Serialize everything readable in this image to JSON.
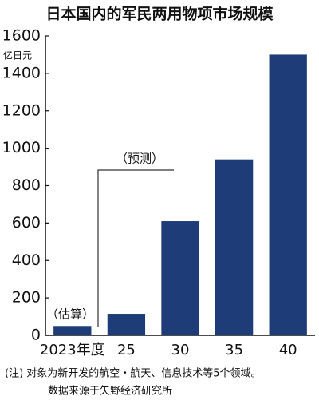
{
  "chart_data": {
    "type": "bar",
    "title": "日本国内的军民两用物项市场规模",
    "y_unit": "亿日元",
    "categories": [
      "2023年度",
      "25",
      "30",
      "35",
      "40"
    ],
    "values": [
      50,
      115,
      610,
      940,
      1500
    ],
    "color": "#1d3c78",
    "ylim": [
      0,
      1600
    ],
    "yticks": [
      0,
      200,
      400,
      600,
      800,
      1000,
      1200,
      1400,
      1600
    ],
    "annotations": [
      "（估算）",
      "（预测）"
    ],
    "notes": [
      "(注) 对象为新开发的航空・航天、信息技术等5个领域。",
      "数据来源于矢野经济研究所"
    ]
  }
}
